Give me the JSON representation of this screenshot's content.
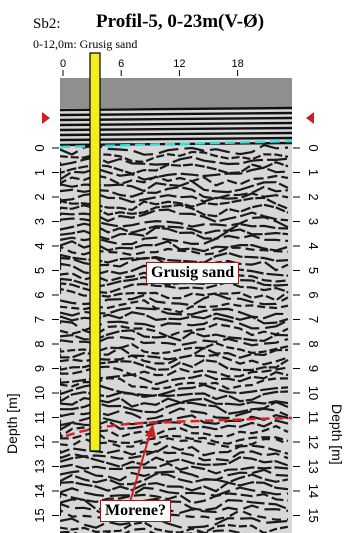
{
  "header": {
    "borehole": "Sb2:",
    "title": "Profil-5, 0-23m(V-Ø)",
    "borehole_note": "0-12,0m: Grusig sand"
  },
  "axes": {
    "x_ticks": [
      "0",
      "6",
      "12",
      "18"
    ],
    "depth_ticks": [
      "0",
      "1",
      "2",
      "3",
      "4",
      "5",
      "6",
      "7",
      "8",
      "9",
      "10",
      "11",
      "12",
      "13",
      "14",
      "15"
    ],
    "depth_label": "Depth [m]"
  },
  "annotations": {
    "sand_label": "Grusig sand",
    "morene_label": "Morene?"
  },
  "colors": {
    "surface_line": "#33e0e0",
    "boundary_line": "#e02020",
    "borehole_fill": "#f4ee20",
    "marker": "#cc1f1f"
  }
}
